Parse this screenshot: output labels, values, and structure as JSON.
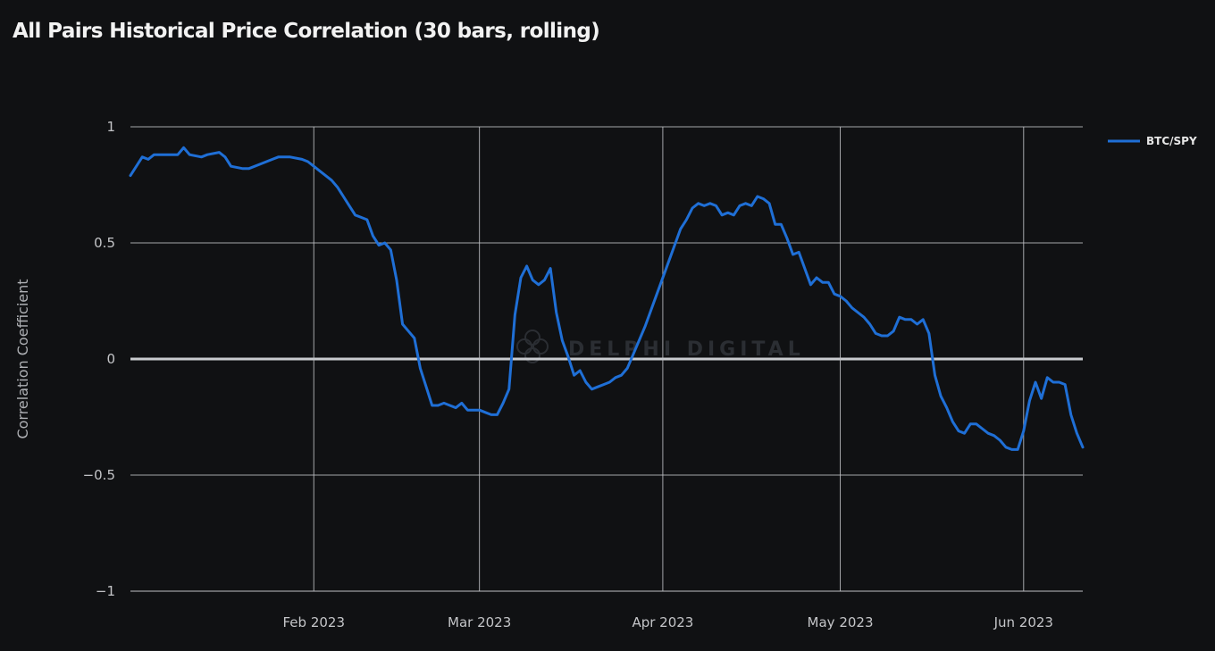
{
  "title": "All Pairs Historical Price Correlation (30 bars, rolling)",
  "watermark": "DELPHI DIGITAL",
  "colors": {
    "background": "#101113",
    "series": "#1f6fd6",
    "grid": "#bfc1c5",
    "zero_line": "#c9cbcf",
    "text": "#c4c5c8"
  },
  "chart_data": {
    "type": "line",
    "title": "All Pairs Historical Price Correlation (30 bars, rolling)",
    "xlabel": "",
    "ylabel": "Correlation Coefficient",
    "ylim": [
      -1,
      1
    ],
    "xlim": [
      "2023-01-01",
      "2023-06-11"
    ],
    "grid": true,
    "legend_position": "top-right",
    "x_ticks": [
      {
        "date": "2023-02-01",
        "label": "Feb 2023"
      },
      {
        "date": "2023-03-01",
        "label": "Mar 2023"
      },
      {
        "date": "2023-04-01",
        "label": "Apr 2023"
      },
      {
        "date": "2023-05-01",
        "label": "May 2023"
      },
      {
        "date": "2023-06-01",
        "label": "Jun 2023"
      }
    ],
    "y_ticks": [
      {
        "value": 1,
        "label": "1"
      },
      {
        "value": 0.5,
        "label": "0.5"
      },
      {
        "value": 0,
        "label": "0"
      },
      {
        "value": -0.5,
        "label": "−0.5"
      },
      {
        "value": -1,
        "label": "−1"
      }
    ],
    "series": [
      {
        "name": "BTC/SPY",
        "color": "#1f6fd6",
        "points": [
          [
            "2023-01-01",
            0.79
          ],
          [
            "2023-01-02",
            0.83
          ],
          [
            "2023-01-03",
            0.87
          ],
          [
            "2023-01-04",
            0.86
          ],
          [
            "2023-01-05",
            0.88
          ],
          [
            "2023-01-06",
            0.88
          ],
          [
            "2023-01-08",
            0.88
          ],
          [
            "2023-01-09",
            0.88
          ],
          [
            "2023-01-10",
            0.91
          ],
          [
            "2023-01-11",
            0.88
          ],
          [
            "2023-01-13",
            0.87
          ],
          [
            "2023-01-14",
            0.88
          ],
          [
            "2023-01-16",
            0.89
          ],
          [
            "2023-01-17",
            0.87
          ],
          [
            "2023-01-18",
            0.83
          ],
          [
            "2023-01-20",
            0.82
          ],
          [
            "2023-01-21",
            0.82
          ],
          [
            "2023-01-23",
            0.84
          ],
          [
            "2023-01-25",
            0.86
          ],
          [
            "2023-01-26",
            0.87
          ],
          [
            "2023-01-28",
            0.87
          ],
          [
            "2023-01-30",
            0.86
          ],
          [
            "2023-01-31",
            0.85
          ],
          [
            "2023-02-01",
            0.83
          ],
          [
            "2023-02-02",
            0.81
          ],
          [
            "2023-02-04",
            0.77
          ],
          [
            "2023-02-05",
            0.74
          ],
          [
            "2023-02-06",
            0.7
          ],
          [
            "2023-02-07",
            0.66
          ],
          [
            "2023-02-08",
            0.62
          ],
          [
            "2023-02-09",
            0.61
          ],
          [
            "2023-02-10",
            0.6
          ],
          [
            "2023-02-11",
            0.53
          ],
          [
            "2023-02-12",
            0.49
          ],
          [
            "2023-02-13",
            0.5
          ],
          [
            "2023-02-14",
            0.47
          ],
          [
            "2023-02-15",
            0.34
          ],
          [
            "2023-02-16",
            0.15
          ],
          [
            "2023-02-17",
            0.12
          ],
          [
            "2023-02-18",
            0.09
          ],
          [
            "2023-02-19",
            -0.04
          ],
          [
            "2023-02-20",
            -0.12
          ],
          [
            "2023-02-21",
            -0.2
          ],
          [
            "2023-02-22",
            -0.2
          ],
          [
            "2023-02-23",
            -0.19
          ],
          [
            "2023-02-24",
            -0.2
          ],
          [
            "2023-02-25",
            -0.21
          ],
          [
            "2023-02-26",
            -0.19
          ],
          [
            "2023-02-27",
            -0.22
          ],
          [
            "2023-03-01",
            -0.22
          ],
          [
            "2023-03-02",
            -0.23
          ],
          [
            "2023-03-03",
            -0.24
          ],
          [
            "2023-03-04",
            -0.24
          ],
          [
            "2023-03-05",
            -0.19
          ],
          [
            "2023-03-06",
            -0.13
          ],
          [
            "2023-03-07",
            0.19
          ],
          [
            "2023-03-08",
            0.35
          ],
          [
            "2023-03-09",
            0.4
          ],
          [
            "2023-03-10",
            0.34
          ],
          [
            "2023-03-11",
            0.32
          ],
          [
            "2023-03-12",
            0.34
          ],
          [
            "2023-03-13",
            0.39
          ],
          [
            "2023-03-14",
            0.2
          ],
          [
            "2023-03-15",
            0.08
          ],
          [
            "2023-03-16",
            0.01
          ],
          [
            "2023-03-17",
            -0.07
          ],
          [
            "2023-03-18",
            -0.05
          ],
          [
            "2023-03-19",
            -0.1
          ],
          [
            "2023-03-20",
            -0.13
          ],
          [
            "2023-03-21",
            -0.12
          ],
          [
            "2023-03-22",
            -0.11
          ],
          [
            "2023-03-23",
            -0.1
          ],
          [
            "2023-03-24",
            -0.08
          ],
          [
            "2023-03-25",
            -0.07
          ],
          [
            "2023-03-26",
            -0.04
          ],
          [
            "2023-03-27",
            0.02
          ],
          [
            "2023-03-28",
            0.08
          ],
          [
            "2023-03-29",
            0.14
          ],
          [
            "2023-03-30",
            0.21
          ],
          [
            "2023-03-31",
            0.28
          ],
          [
            "2023-04-01",
            0.35
          ],
          [
            "2023-04-02",
            0.42
          ],
          [
            "2023-04-03",
            0.49
          ],
          [
            "2023-04-04",
            0.56
          ],
          [
            "2023-04-05",
            0.6
          ],
          [
            "2023-04-06",
            0.65
          ],
          [
            "2023-04-07",
            0.67
          ],
          [
            "2023-04-08",
            0.66
          ],
          [
            "2023-04-09",
            0.67
          ],
          [
            "2023-04-10",
            0.66
          ],
          [
            "2023-04-11",
            0.62
          ],
          [
            "2023-04-12",
            0.63
          ],
          [
            "2023-04-13",
            0.62
          ],
          [
            "2023-04-14",
            0.66
          ],
          [
            "2023-04-15",
            0.67
          ],
          [
            "2023-04-16",
            0.66
          ],
          [
            "2023-04-17",
            0.7
          ],
          [
            "2023-04-18",
            0.69
          ],
          [
            "2023-04-19",
            0.67
          ],
          [
            "2023-04-20",
            0.58
          ],
          [
            "2023-04-21",
            0.58
          ],
          [
            "2023-04-22",
            0.52
          ],
          [
            "2023-04-23",
            0.45
          ],
          [
            "2023-04-24",
            0.46
          ],
          [
            "2023-04-25",
            0.39
          ],
          [
            "2023-04-26",
            0.32
          ],
          [
            "2023-04-27",
            0.35
          ],
          [
            "2023-04-28",
            0.33
          ],
          [
            "2023-04-29",
            0.33
          ],
          [
            "2023-04-30",
            0.28
          ],
          [
            "2023-05-01",
            0.27
          ],
          [
            "2023-05-02",
            0.25
          ],
          [
            "2023-05-03",
            0.22
          ],
          [
            "2023-05-04",
            0.2
          ],
          [
            "2023-05-05",
            0.18
          ],
          [
            "2023-05-06",
            0.15
          ],
          [
            "2023-05-07",
            0.11
          ],
          [
            "2023-05-08",
            0.1
          ],
          [
            "2023-05-09",
            0.1
          ],
          [
            "2023-05-10",
            0.12
          ],
          [
            "2023-05-11",
            0.18
          ],
          [
            "2023-05-12",
            0.17
          ],
          [
            "2023-05-13",
            0.17
          ],
          [
            "2023-05-14",
            0.15
          ],
          [
            "2023-05-15",
            0.17
          ],
          [
            "2023-05-16",
            0.11
          ],
          [
            "2023-05-17",
            -0.07
          ],
          [
            "2023-05-18",
            -0.16
          ],
          [
            "2023-05-19",
            -0.21
          ],
          [
            "2023-05-20",
            -0.27
          ],
          [
            "2023-05-21",
            -0.31
          ],
          [
            "2023-05-22",
            -0.32
          ],
          [
            "2023-05-23",
            -0.28
          ],
          [
            "2023-05-24",
            -0.28
          ],
          [
            "2023-05-25",
            -0.3
          ],
          [
            "2023-05-26",
            -0.32
          ],
          [
            "2023-05-27",
            -0.33
          ],
          [
            "2023-05-28",
            -0.35
          ],
          [
            "2023-05-29",
            -0.38
          ],
          [
            "2023-05-30",
            -0.39
          ],
          [
            "2023-05-31",
            -0.39
          ],
          [
            "2023-06-01",
            -0.31
          ],
          [
            "2023-06-02",
            -0.18
          ],
          [
            "2023-06-03",
            -0.1
          ],
          [
            "2023-06-04",
            -0.17
          ],
          [
            "2023-06-05",
            -0.08
          ],
          [
            "2023-06-06",
            -0.1
          ],
          [
            "2023-06-07",
            -0.1
          ],
          [
            "2023-06-08",
            -0.11
          ],
          [
            "2023-06-09",
            -0.24
          ],
          [
            "2023-06-10",
            -0.32
          ],
          [
            "2023-06-11",
            -0.38
          ]
        ]
      }
    ]
  }
}
